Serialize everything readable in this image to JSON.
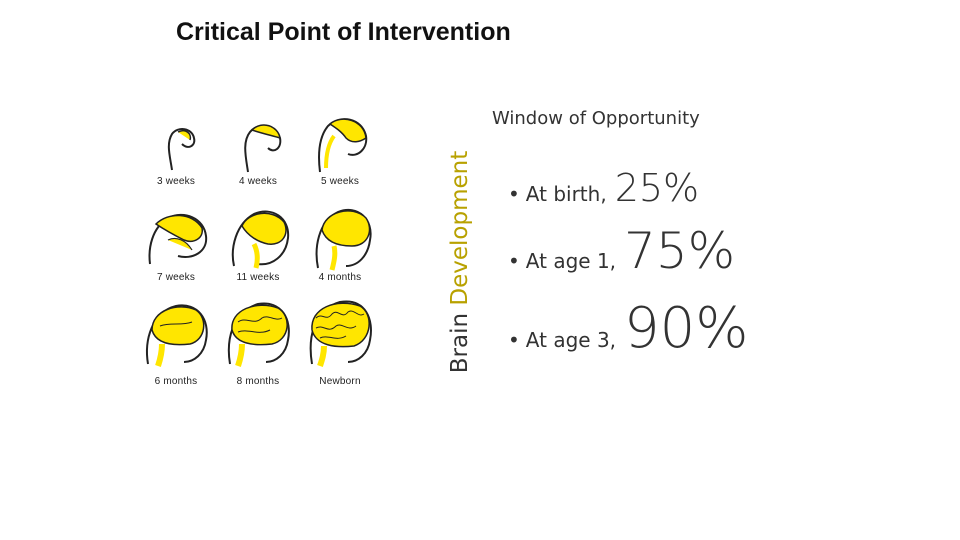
{
  "slide": {
    "title": "Critical Point of Intervention",
    "subtitle": "Window of Opportunity",
    "vertical_label_part1": "Brain ",
    "vertical_label_part2": "Development",
    "vertical_label_highlight_color": "#b8a100"
  },
  "figure": {
    "brain_color": "#ffe600",
    "outline_color": "#222222",
    "captions": [
      "3 weeks",
      "4 weeks",
      "5 weeks",
      "7 weeks",
      "11 weeks",
      "4 months",
      "6 months",
      "8 months",
      "Newborn"
    ]
  },
  "bullets": [
    {
      "bullet": "•",
      "label": "At birth,",
      "value": "25%"
    },
    {
      "bullet": "•",
      "label": "At age 1,",
      "value": "75%"
    },
    {
      "bullet": "•",
      "label": "At age 3,",
      "value": "90%"
    }
  ]
}
